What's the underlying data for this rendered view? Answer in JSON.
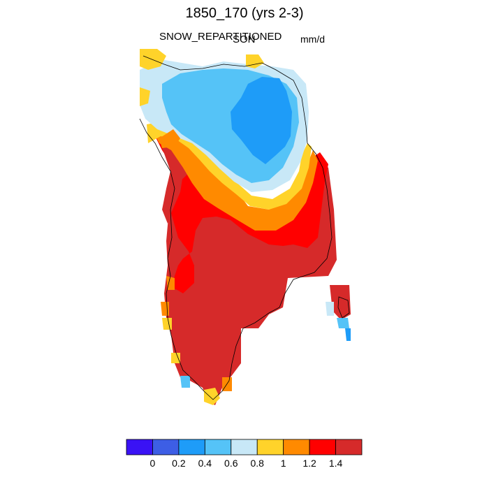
{
  "header": {
    "title": "1850_170 (yrs 2-3)",
    "variable": "SNOW_REPARTITIONED",
    "season": "SON",
    "units": "mm/d"
  },
  "colorbar": {
    "colors": [
      "#3a12f5",
      "#3d5ee5",
      "#1e9cf8",
      "#55c3f7",
      "#c8e8f7",
      "#ffd32a",
      "#ff8a00",
      "#ff0000",
      "#d62a2a"
    ],
    "labels": [
      "0",
      "0.2",
      "0.4",
      "0.6",
      "0.8",
      "1",
      "1.2",
      "1.4"
    ]
  },
  "map": {
    "region": "Greenland",
    "ocean_color": "#ffffff",
    "coastline_color": "#000000"
  }
}
